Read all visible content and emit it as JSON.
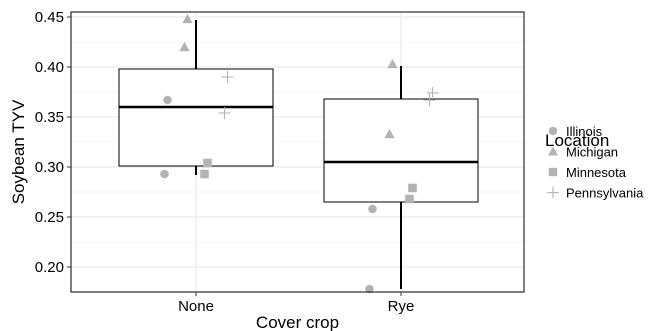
{
  "chart_data": {
    "type": "box",
    "xlabel": "Cover crop",
    "ylabel": "Soybean TYV",
    "categories": [
      "None",
      "Rye"
    ],
    "ylim": [
      0.175,
      0.455
    ],
    "yticks": [
      "0.20",
      "0.25",
      "0.30",
      "0.35",
      "0.40",
      "0.45"
    ],
    "grid": true,
    "legend": {
      "title": "Location",
      "placement": "right",
      "entries": [
        "Illinois",
        "Michigan",
        "Minnesota",
        "Pennsylvania"
      ]
    },
    "boxes": [
      {
        "category": "None",
        "whisker_low": 0.292,
        "q1": 0.301,
        "median": 0.36,
        "q3": 0.398,
        "whisker_high": 0.447
      },
      {
        "category": "Rye",
        "whisker_low": 0.178,
        "q1": 0.265,
        "median": 0.305,
        "q3": 0.368,
        "whisker_high": 0.401
      }
    ],
    "points": [
      {
        "category": "None",
        "location": "Illinois",
        "values": [
          0.367,
          0.293
        ]
      },
      {
        "category": "None",
        "location": "Michigan",
        "values": [
          0.448,
          0.42
        ]
      },
      {
        "category": "None",
        "location": "Minnesota",
        "values": [
          0.304,
          0.293
        ]
      },
      {
        "category": "None",
        "location": "Pennsylvania",
        "values": [
          0.39,
          0.354
        ]
      },
      {
        "category": "Rye",
        "location": "Illinois",
        "values": [
          0.258,
          0.178
        ]
      },
      {
        "category": "Rye",
        "location": "Michigan",
        "values": [
          0.403,
          0.333
        ]
      },
      {
        "category": "Rye",
        "location": "Minnesota",
        "values": [
          0.279,
          0.268
        ]
      },
      {
        "category": "Rye",
        "location": "Pennsylvania",
        "values": [
          0.374,
          0.367
        ]
      }
    ],
    "point_color": "#b3b3b3",
    "grid_color": "#ebebeb"
  }
}
